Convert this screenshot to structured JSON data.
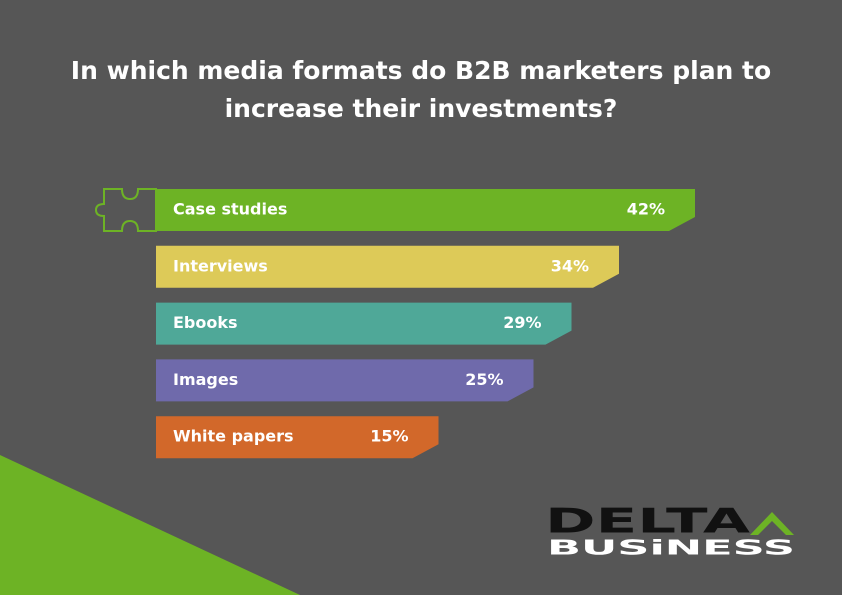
{
  "chart_data": {
    "type": "bar",
    "orientation": "horizontal",
    "title": "In which media formats do B2B marketers plan to increase their investments?",
    "categories": [
      "Case studies",
      "Interviews",
      "Ebooks",
      "Images",
      "White papers"
    ],
    "values": [
      42,
      34,
      29,
      25,
      15
    ],
    "value_labels": [
      "42%",
      "34%",
      "29%",
      "25%",
      "15%"
    ],
    "colors": [
      "#6db325",
      "#ddca58",
      "#4fa898",
      "#6f6aab",
      "#d2682a"
    ]
  },
  "logo": {
    "line1": "DELTA",
    "line2": "BUSiNESS"
  }
}
